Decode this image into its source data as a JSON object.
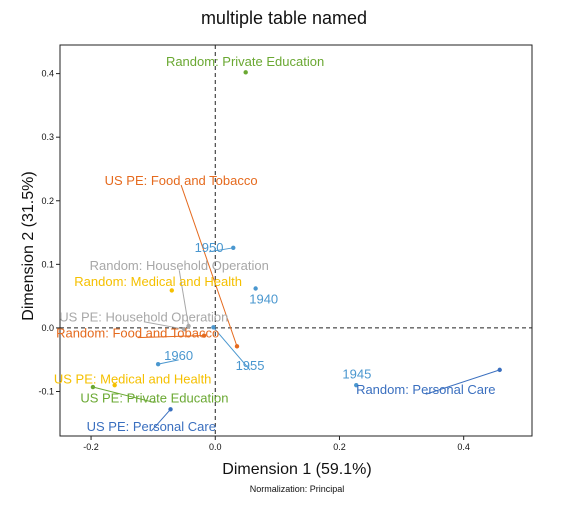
{
  "chart_data": {
    "type": "scatter",
    "title": "multiple table named",
    "xlabel": "Dimension 1 (59.1%)",
    "ylabel": "Dimension 2 (31.5%)",
    "footnote": "Normalization: Principal",
    "xlim": [
      -0.25,
      0.51
    ],
    "ylim": [
      -0.17,
      0.445
    ],
    "xticks": [
      -0.2,
      0.0,
      0.2,
      0.4
    ],
    "xtick_labels": [
      "-0.2",
      "0.0",
      "0.2",
      "0.4"
    ],
    "yticks": [
      -0.1,
      0.0,
      0.1,
      0.2,
      0.3,
      0.4
    ],
    "ytick_labels": [
      "-0.1",
      "0.0",
      "0.1",
      "0.2",
      "0.3",
      "0.4"
    ],
    "grid": false,
    "reference_lines": [
      0,
      0
    ],
    "colors": {
      "years": "#4a97cf",
      "education": "#6aa832",
      "food": "#e56a1e",
      "household": "#a8a8a8",
      "medical": "#f5c000",
      "personal": "#3a6fbf"
    },
    "points": [
      {
        "label": "1940",
        "x": 0.065,
        "y": 0.062,
        "lx": 0.078,
        "ly": 0.045,
        "color": "years"
      },
      {
        "label": "1945",
        "x": 0.227,
        "y": -0.09,
        "lx": 0.228,
        "ly": -0.073,
        "color": "years"
      },
      {
        "label": "1950",
        "x": 0.029,
        "y": 0.126,
        "lx": -0.01,
        "ly": 0.126,
        "color": "years"
      },
      {
        "label": "1955",
        "x": -0.003,
        "y": 0.001,
        "lx": 0.056,
        "ly": -0.06,
        "color": "years"
      },
      {
        "label": "1960",
        "x": -0.092,
        "y": -0.057,
        "lx": -0.059,
        "ly": -0.044,
        "color": "years"
      },
      {
        "label": "Random: Private Education",
        "x": 0.049,
        "y": 0.402,
        "lx": 0.048,
        "ly": 0.418,
        "color": "education"
      },
      {
        "label": "US PE: Private Education",
        "x": -0.197,
        "y": -0.093,
        "lx": -0.098,
        "ly": -0.111,
        "color": "education"
      },
      {
        "label": "US PE: Food and Tobacco",
        "x": 0.035,
        "y": -0.029,
        "lx": -0.055,
        "ly": 0.231,
        "color": "food"
      },
      {
        "label": "Random: Food and Tobacco",
        "x": -0.018,
        "y": -0.012,
        "lx": -0.125,
        "ly": -0.009,
        "color": "food"
      },
      {
        "label": "Random: Household Operation",
        "x": -0.043,
        "y": 0.003,
        "lx": -0.058,
        "ly": 0.097,
        "color": "household"
      },
      {
        "label": "US PE: Household Operation",
        "x": -0.05,
        "y": -0.002,
        "lx": -0.115,
        "ly": 0.016,
        "color": "household"
      },
      {
        "label": "Random: Medical and Health",
        "x": -0.07,
        "y": 0.059,
        "lx": -0.092,
        "ly": 0.072,
        "color": "medical"
      },
      {
        "label": "US PE: Medical and Health",
        "x": -0.162,
        "y": -0.09,
        "lx": -0.133,
        "ly": -0.081,
        "color": "medical"
      },
      {
        "label": "Random: Personal Care",
        "x": 0.458,
        "y": -0.066,
        "lx": 0.339,
        "ly": -0.098,
        "color": "personal"
      },
      {
        "label": "US PE: Personal Care",
        "x": -0.072,
        "y": -0.128,
        "lx": -0.103,
        "ly": -0.156,
        "color": "personal"
      }
    ]
  }
}
